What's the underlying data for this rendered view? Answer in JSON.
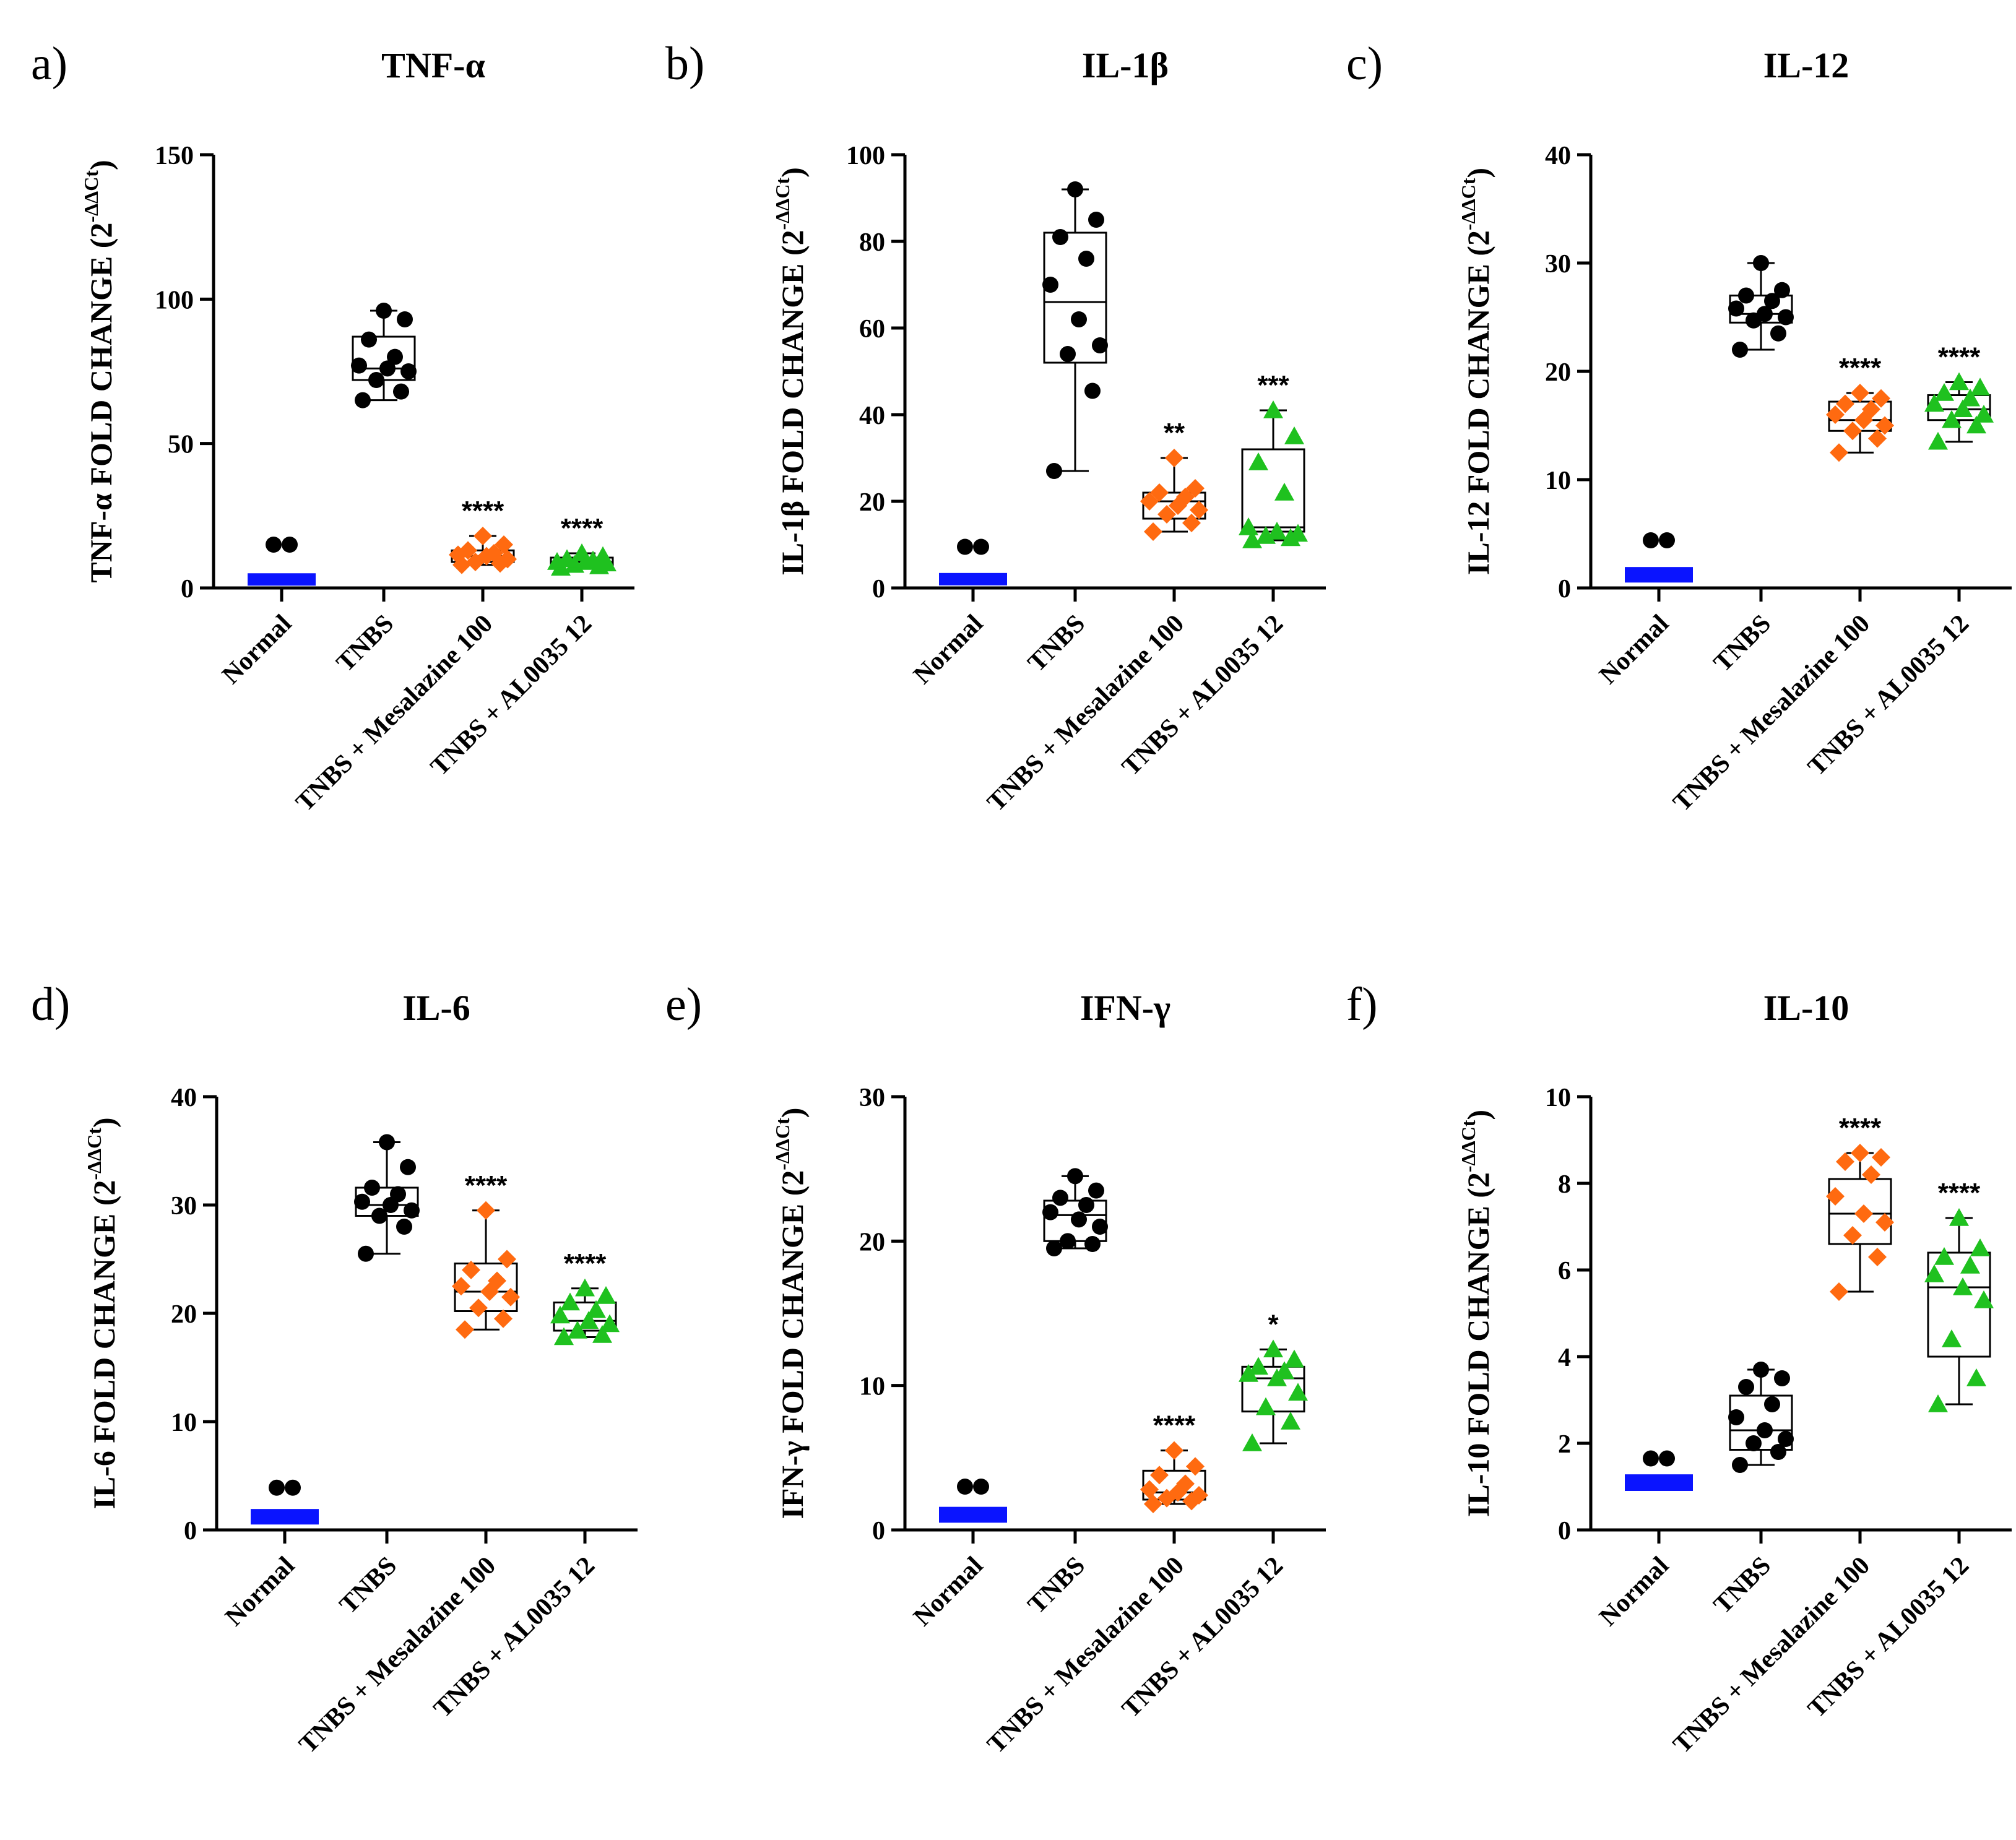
{
  "colors": {
    "normal": "#0a14ff",
    "tnbs": "#000000",
    "mesalazine": "#ff6a10",
    "al0035": "#1fc11f",
    "axis": "#000000"
  },
  "categories": [
    "Normal",
    "TNBS",
    "TNBS + Mesalazine 100",
    "TNBS + AL0035 12"
  ],
  "ylabel_superscript": "-ΔΔCt",
  "chart_data": [
    {
      "type": "box",
      "panel": "a)",
      "title": "TNF-α",
      "ylabel": "TNF-α FOLD CHANGE (2",
      "ylim": [
        0,
        150
      ],
      "yticks": [
        0,
        50,
        100,
        150
      ],
      "groups": [
        {
          "name": "Normal",
          "box": {
            "min": 0.5,
            "q1": 0.8,
            "median": 1.6,
            "q3": 3.0,
            "max": 4.5
          },
          "points": [
            0.6,
            0.8,
            1.0,
            1.2,
            1.4,
            1.8,
            2.2,
            2.8,
            3.5,
            4.2
          ],
          "outliers": [
            15,
            15
          ],
          "sig": ""
        },
        {
          "name": "TNBS",
          "box": {
            "min": 65,
            "q1": 72,
            "median": 76,
            "q3": 87,
            "max": 96
          },
          "points": [
            65,
            68,
            72,
            75,
            76,
            77,
            80,
            86,
            93,
            96
          ],
          "sig": ""
        },
        {
          "name": "TNBS + Mesalazine 100",
          "box": {
            "min": 8,
            "q1": 9,
            "median": 11,
            "q3": 13,
            "max": 18
          },
          "points": [
            8,
            8.5,
            9,
            10,
            11,
            11.5,
            12,
            13,
            15,
            18
          ],
          "sig": "****"
        },
        {
          "name": "TNBS + AL0035 12",
          "box": {
            "min": 7,
            "q1": 8,
            "median": 9,
            "q3": 10.5,
            "max": 12
          },
          "points": [
            7,
            7.5,
            8,
            8.5,
            9,
            9,
            9.5,
            10,
            11,
            12
          ],
          "sig": "****"
        }
      ]
    },
    {
      "type": "box",
      "panel": "b)",
      "title": "IL-1β",
      "ylabel": "IL-1β FOLD CHANGE (2",
      "ylim": [
        0,
        100
      ],
      "yticks": [
        0,
        20,
        40,
        60,
        80,
        100
      ],
      "groups": [
        {
          "name": "Normal",
          "box": {
            "min": 0.3,
            "q1": 0.6,
            "median": 1.2,
            "q3": 2.0,
            "max": 3.0
          },
          "points": [
            0.4,
            0.6,
            0.8,
            1.0,
            1.2,
            1.5,
            1.8,
            2.2,
            2.6,
            3.0
          ],
          "outliers": [
            9.5,
            9.5
          ],
          "sig": ""
        },
        {
          "name": "TNBS",
          "box": {
            "min": 27,
            "q1": 52,
            "median": 66,
            "q3": 82,
            "max": 92
          },
          "points": [
            27,
            45.5,
            54,
            56,
            62,
            70,
            76,
            81,
            85,
            92
          ],
          "sig": ""
        },
        {
          "name": "TNBS + Mesalazine 100",
          "box": {
            "min": 13,
            "q1": 16,
            "median": 20,
            "q3": 22,
            "max": 30
          },
          "points": [
            13,
            15,
            17,
            18,
            19,
            20,
            21,
            22,
            23,
            30
          ],
          "sig": "**"
        },
        {
          "name": "TNBS + AL0035 12",
          "box": {
            "min": 11,
            "q1": 13,
            "median": 14,
            "q3": 32,
            "max": 41
          },
          "points": [
            11,
            11.5,
            12,
            12.5,
            13,
            14,
            22,
            29,
            35,
            41
          ],
          "sig": "***"
        }
      ]
    },
    {
      "type": "box",
      "panel": "c)",
      "title": "IL-12",
      "ylabel": "IL-12 FOLD CHANGE (2",
      "ylim": [
        0,
        40
      ],
      "yticks": [
        0,
        10,
        20,
        30,
        40
      ],
      "groups": [
        {
          "name": "Normal",
          "box": {
            "min": 0.3,
            "q1": 0.5,
            "median": 0.9,
            "q3": 1.4,
            "max": 1.8
          },
          "points": [
            0.3,
            0.5,
            0.7,
            0.8,
            0.9,
            1.0,
            1.2,
            1.4,
            1.6,
            1.8
          ],
          "outliers": [
            4.4,
            4.4
          ],
          "sig": ""
        },
        {
          "name": "TNBS",
          "box": {
            "min": 22,
            "q1": 24.5,
            "median": 25.3,
            "q3": 27,
            "max": 30
          },
          "points": [
            22,
            23.5,
            24.7,
            25,
            25.3,
            25.8,
            26.5,
            27,
            27.5,
            30
          ],
          "sig": ""
        },
        {
          "name": "TNBS + Mesalazine 100",
          "box": {
            "min": 12.5,
            "q1": 14.5,
            "median": 15.5,
            "q3": 17.2,
            "max": 18
          },
          "points": [
            12.5,
            13.8,
            14.5,
            15,
            15.5,
            16,
            16.5,
            17,
            17.5,
            18
          ],
          "sig": "****"
        },
        {
          "name": "TNBS + AL0035 12",
          "box": {
            "min": 13.5,
            "q1": 15.5,
            "median": 16.5,
            "q3": 17.8,
            "max": 19
          },
          "points": [
            13.5,
            15,
            15.5,
            16,
            16.5,
            17,
            17.5,
            18,
            18.5,
            19
          ],
          "sig": "****"
        }
      ]
    },
    {
      "type": "box",
      "panel": "d)",
      "title": "IL-6",
      "ylabel": "IL-6 FOLD CHANGE (2",
      "ylim": [
        0,
        40
      ],
      "yticks": [
        0,
        10,
        20,
        30,
        40
      ],
      "groups": [
        {
          "name": "Normal",
          "box": {
            "min": 0.3,
            "q1": 0.5,
            "median": 0.9,
            "q3": 1.4,
            "max": 1.8
          },
          "points": [
            0.3,
            0.5,
            0.7,
            0.8,
            0.9,
            1.0,
            1.2,
            1.4,
            1.6,
            1.8
          ],
          "outliers": [
            3.9,
            3.9
          ],
          "sig": ""
        },
        {
          "name": "TNBS",
          "box": {
            "min": 25.5,
            "q1": 29,
            "median": 30,
            "q3": 31.6,
            "max": 35.8
          },
          "points": [
            25.5,
            28,
            29,
            29.5,
            30,
            30.3,
            31,
            31.6,
            33.5,
            35.8
          ],
          "sig": ""
        },
        {
          "name": "TNBS + Mesalazine 100",
          "box": {
            "min": 18.5,
            "q1": 20.2,
            "median": 22,
            "q3": 24.6,
            "max": 29.5
          },
          "points": [
            18.5,
            19.5,
            20.5,
            21.5,
            22,
            22.5,
            23,
            24,
            25,
            29.5
          ],
          "sig": "****"
        },
        {
          "name": "TNBS + AL0035 12",
          "box": {
            "min": 17.8,
            "q1": 18.4,
            "median": 19.3,
            "q3": 21,
            "max": 22.3
          },
          "points": [
            17.8,
            18,
            18.4,
            19,
            19.3,
            19.8,
            20.3,
            21,
            21.6,
            22.3
          ],
          "sig": "****"
        }
      ]
    },
    {
      "type": "box",
      "panel": "e)",
      "title": "IFN-γ",
      "ylabel": "IFN-γ FOLD CHANGE (2",
      "ylim": [
        0,
        30
      ],
      "yticks": [
        0,
        10,
        20,
        30
      ],
      "groups": [
        {
          "name": "Normal",
          "box": {
            "min": 0.3,
            "q1": 0.5,
            "median": 0.9,
            "q3": 1.2,
            "max": 1.6
          },
          "points": [
            0.3,
            0.5,
            0.7,
            0.8,
            0.9,
            1.0,
            1.1,
            1.2,
            1.4,
            1.6
          ],
          "outliers": [
            3.0,
            3.0
          ],
          "sig": ""
        },
        {
          "name": "TNBS",
          "box": {
            "min": 19.5,
            "q1": 20,
            "median": 21.8,
            "q3": 22.8,
            "max": 24.5
          },
          "points": [
            19.5,
            19.8,
            20,
            21,
            21.5,
            22,
            22.5,
            23,
            23.5,
            24.5
          ],
          "sig": ""
        },
        {
          "name": "TNBS + Mesalazine 100",
          "box": {
            "min": 1.8,
            "q1": 2.1,
            "median": 2.6,
            "q3": 4.1,
            "max": 5.5
          },
          "points": [
            1.8,
            2,
            2.2,
            2.4,
            2.6,
            2.8,
            3.2,
            3.8,
            4.4,
            5.5
          ],
          "sig": "****"
        },
        {
          "name": "TNBS + AL0035 12",
          "box": {
            "min": 6,
            "q1": 8.2,
            "median": 10.5,
            "q3": 11.3,
            "max": 12.5
          },
          "points": [
            6,
            7.5,
            8.5,
            9.5,
            10.5,
            10.8,
            11,
            11.3,
            11.8,
            12.5
          ],
          "sig": "*"
        }
      ]
    },
    {
      "type": "box",
      "panel": "f)",
      "title": "IL-10",
      "ylabel": "IL-10 FOLD CHANGE (2",
      "ylim": [
        0,
        10
      ],
      "yticks": [
        0,
        2,
        4,
        6,
        8,
        10
      ],
      "groups": [
        {
          "name": "Normal",
          "box": {
            "min": 0.85,
            "q1": 0.9,
            "median": 1.0,
            "q3": 1.15,
            "max": 1.2
          },
          "points": [
            0.85,
            0.9,
            0.95,
            1.0,
            1.0,
            1.05,
            1.1,
            1.15,
            1.2,
            1.2
          ],
          "outliers": [
            1.65,
            1.65
          ],
          "sig": ""
        },
        {
          "name": "TNBS",
          "box": {
            "min": 1.5,
            "q1": 1.85,
            "median": 2.3,
            "q3": 3.1,
            "max": 3.7
          },
          "points": [
            1.5,
            1.8,
            2,
            2.1,
            2.3,
            2.6,
            2.9,
            3.3,
            3.5,
            3.7
          ],
          "sig": ""
        },
        {
          "name": "TNBS + Mesalazine 100",
          "box": {
            "min": 5.5,
            "q1": 6.6,
            "median": 7.3,
            "q3": 8.1,
            "max": 8.7
          },
          "points": [
            5.5,
            6.3,
            6.8,
            7.1,
            7.3,
            7.7,
            8.2,
            8.5,
            8.6,
            8.7
          ],
          "sig": "****"
        },
        {
          "name": "TNBS + AL0035 12",
          "box": {
            "min": 2.9,
            "q1": 4,
            "median": 5.6,
            "q3": 6.4,
            "max": 7.2
          },
          "points": [
            2.9,
            3.5,
            4.4,
            5.3,
            5.6,
            5.9,
            6.1,
            6.3,
            6.5,
            7.2
          ],
          "sig": "****"
        }
      ]
    }
  ]
}
